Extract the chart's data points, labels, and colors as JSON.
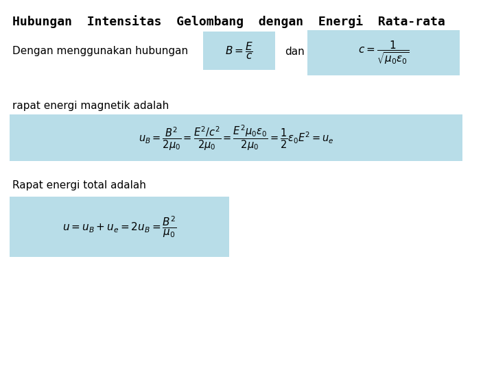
{
  "title": "Hubungan  Intensitas  Gelombang  dengan  Energi  Rata-rata",
  "background_color": "#ffffff",
  "box_color": "#b8dde8",
  "text1": "Dengan menggunakan hubungan",
  "dan": "dan",
  "text2": "rapat energi magnetik adalah",
  "text3": "Rapat energi total adalah",
  "eq1": "$B = \\dfrac{E}{c}$",
  "eq2": "$c = \\dfrac{1}{\\sqrt{\\mu_0 \\varepsilon_0}}$",
  "eq3": "$u_B = \\dfrac{B^2}{2\\mu_0} = \\dfrac{E^2/c^2}{2\\mu_0} = \\dfrac{E^2 \\mu_0 \\varepsilon_0}{2\\mu_0} = \\dfrac{1}{2}\\varepsilon_0 E^2 = u_e$",
  "eq4": "$u = u_B + u_e = 2u_B = \\dfrac{B^2}{\\mu_0}$",
  "title_fontsize": 13,
  "text_fontsize": 11,
  "eq_fontsize": 11
}
